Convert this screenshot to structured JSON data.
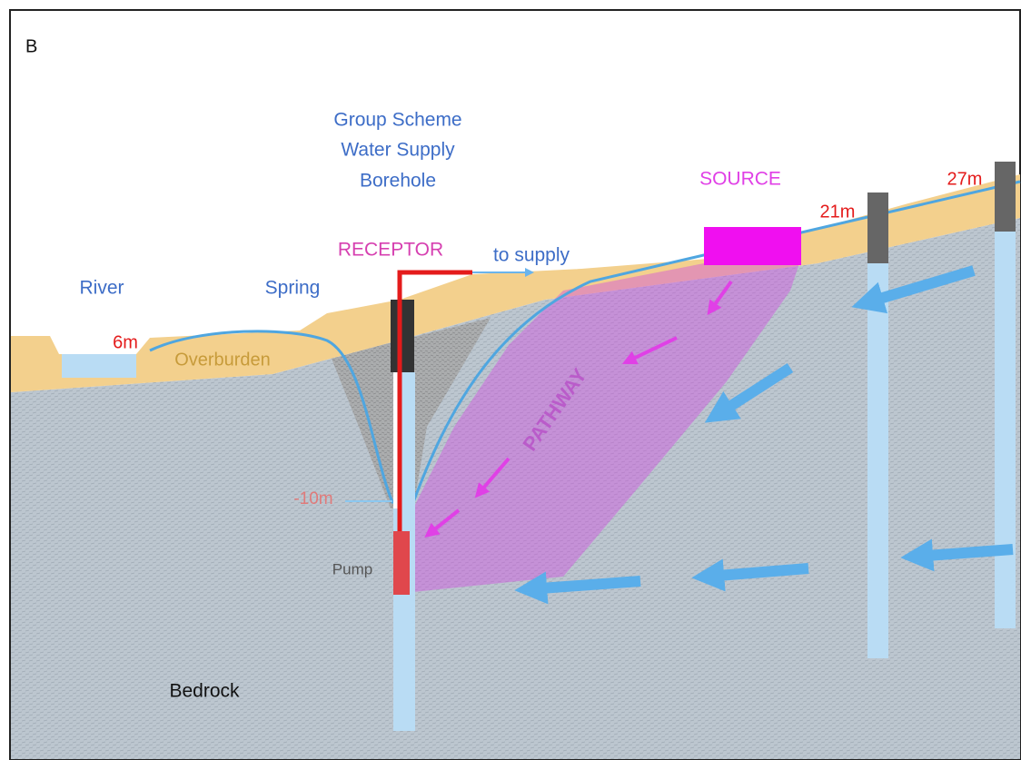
{
  "panel_label": "B",
  "borehole_label": [
    "Group Scheme",
    "Water Supply",
    "Borehole"
  ],
  "source_label": "SOURCE",
  "receptor_label": "RECEPTOR",
  "supply_label": "to supply",
  "pathway_label": "PATHWAY",
  "river_label": "River",
  "spring_label": "Spring",
  "overburden_label": "Overburden",
  "bedrock_label": "Bedrock",
  "pump_label": "Pump",
  "levels": {
    "river": "6m",
    "pumping": "-10m",
    "mid_well": "21m",
    "upper_well": "27m"
  }
}
